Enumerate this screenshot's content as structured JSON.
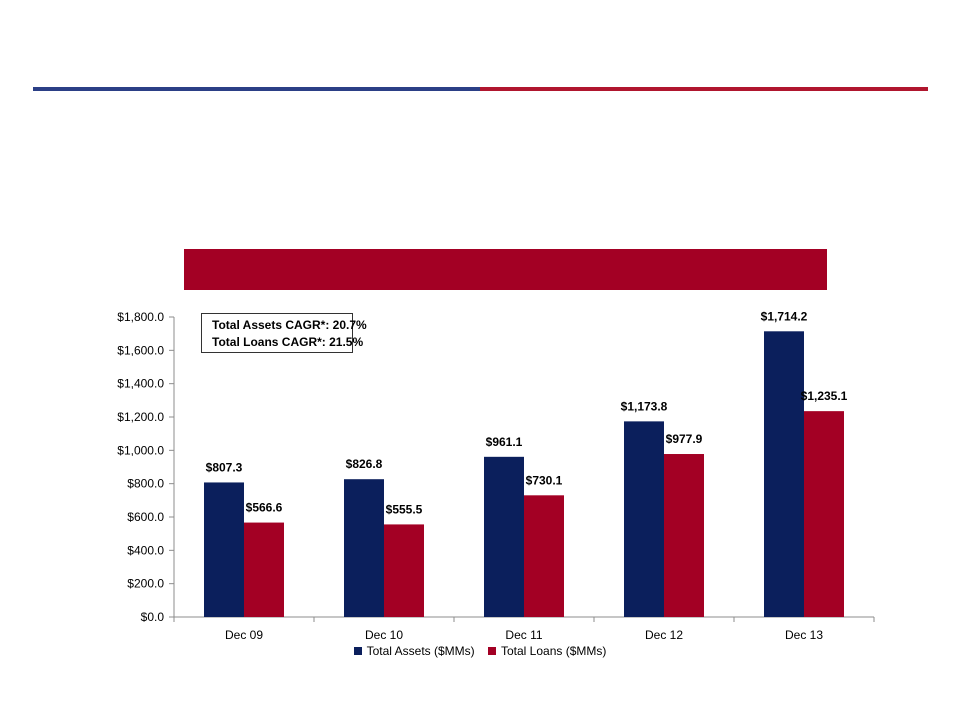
{
  "colors": {
    "assets": "#0b1f5c",
    "loans": "#a30024"
  },
  "annotation": {
    "line1": "Total Assets CAGR*: 20.7%",
    "line2": "Total Loans CAGR*:  21.5%"
  },
  "chart_data": {
    "type": "bar",
    "categories": [
      "Dec 09",
      "Dec 10",
      "Dec 11",
      "Dec 12",
      "Dec 13"
    ],
    "series": [
      {
        "name": "Total Assets ($MMs)",
        "values": [
          807.3,
          826.8,
          961.1,
          1173.8,
          1714.2
        ],
        "labels": [
          "$807.3",
          "$826.8",
          "$961.1",
          "$1,173.8",
          "$1,714.2"
        ]
      },
      {
        "name": "Total Loans ($MMs)",
        "values": [
          566.6,
          555.5,
          730.1,
          977.9,
          1235.1
        ],
        "labels": [
          "$566.6",
          "$555.5",
          "$730.1",
          "$977.9",
          "$1,235.1"
        ]
      }
    ],
    "ylim": [
      0,
      1800
    ],
    "yticks": [
      "$0.0",
      "$200.0",
      "$400.0",
      "$600.0",
      "$800.0",
      "$1,000.0",
      "$1,200.0",
      "$1,400.0",
      "$1,600.0",
      "$1,800.0"
    ],
    "legend": "bottom",
    "grid": false
  }
}
